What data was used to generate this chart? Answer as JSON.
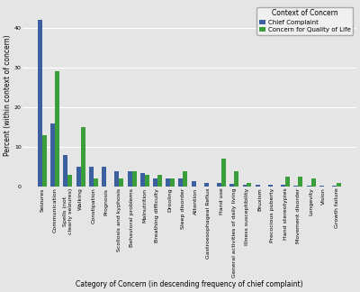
{
  "categories": [
    "Seizures",
    "Communication",
    "Spells (not\nclearly seizures)",
    "Walking",
    "Constipation",
    "Prognosis",
    "Scoliosis and kyphosis",
    "Behavioral problems",
    "Malnutrition",
    "Breathing difficulty",
    "Drooling",
    "Sleep disorder",
    "Attention",
    "Gastroesophageal Reflux",
    "Hand use",
    "General activities of daily living",
    "Illness susceptibility",
    "Bruxism",
    "Precocious puberty",
    "Hand stereotypies",
    "Movement disorder",
    "Longevity",
    "Vision",
    "Growth failure"
  ],
  "chief_complaint": [
    42,
    16,
    8,
    5,
    5,
    5,
    4,
    4,
    3.5,
    2,
    2,
    2,
    1.5,
    1,
    1,
    0.8,
    0.5,
    0.5,
    0.5,
    0.5,
    0.3,
    0.2,
    0.2,
    0.2
  ],
  "quality_of_life": [
    13,
    29,
    3,
    15,
    2,
    0,
    2,
    4,
    3,
    3,
    2,
    4,
    0,
    0,
    7,
    4,
    1,
    0,
    0,
    2.5,
    2.5,
    2,
    0,
    1
  ],
  "bar_color_blue": "#3C5FA0",
  "bar_color_green": "#3A9E3A",
  "legend_title": "Context of Concern",
  "legend_label_blue": "Chief Complaint",
  "legend_label_green": "Concern for Quality of Life",
  "ylabel": "Percent (within context of concern)",
  "xlabel": "Category of Concern (in descending frequency of chief complaint)",
  "ylim": [
    0,
    46
  ],
  "yticks": [
    0,
    10,
    20,
    30,
    40
  ],
  "bg_color": "#E5E5E5",
  "grid_color": "#FFFFFF",
  "axis_fontsize": 5.5,
  "tick_fontsize": 4.5,
  "legend_fontsize": 5.0,
  "legend_title_fontsize": 5.5
}
